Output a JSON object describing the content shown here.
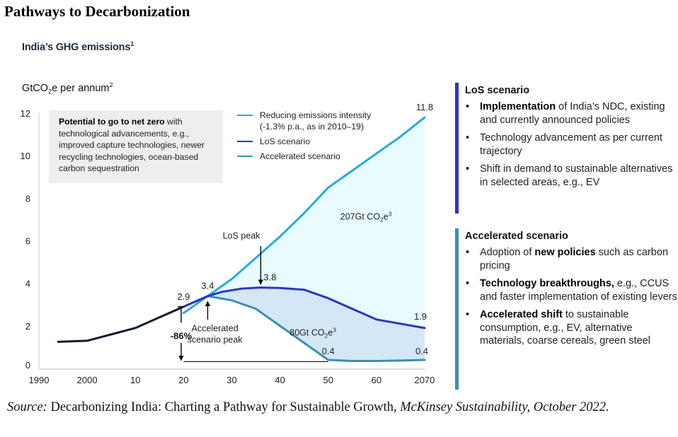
{
  "page_title": "Pathways to Decarbonization",
  "chart_title": "India’s GHG emissions",
  "chart_title_footnote": "1",
  "unit_label": {
    "pre": "GtCO",
    "sub": "2",
    "post": "e per annum",
    "sup": "2"
  },
  "callout": {
    "bold": "Potential to go to net zero",
    "rest": " with technological advancements, e.g., improved capture technologies, newer recycling technologies, ocean-based carbon sequestration"
  },
  "legend": [
    {
      "label": "Reducing emissions intensity",
      "label2": "(-1.3% p.a., as in 2010–19)",
      "color": "#29a9e0"
    },
    {
      "label": "LoS scenario",
      "color": "#2a35c9"
    },
    {
      "label": "Accelerated scenario",
      "color": "#3d8fa8"
    }
  ],
  "chart_data": {
    "type": "line",
    "title": "India’s GHG emissions",
    "ylabel": "GtCO2e per annum",
    "xlabel": "",
    "xlim": [
      1990,
      2070
    ],
    "ylim": [
      0,
      12
    ],
    "grid": false,
    "legend_position": "top-center",
    "x_ticks": [
      1990,
      2000,
      2010,
      2020,
      2030,
      2040,
      2050,
      2060,
      2070
    ],
    "x_tick_labels": [
      "1990",
      "2000",
      "10",
      "20",
      "30",
      "40",
      "50",
      "60",
      "2070"
    ],
    "y_ticks": [
      0,
      2,
      4,
      6,
      8,
      10,
      12
    ],
    "y_tick_labels": [
      "0",
      "2",
      "4",
      "6",
      "8",
      "10",
      "12"
    ],
    "series": [
      {
        "name": "Historical",
        "color": "#111a2e",
        "x": [
          1994,
          2000,
          2005,
          2010,
          2015,
          2020
        ],
        "y": [
          1.25,
          1.3,
          1.6,
          1.9,
          2.4,
          2.9
        ]
      },
      {
        "name": "Reducing emissions intensity (-1.3% p.a., as in 2010–19)",
        "color": "#29a9e0",
        "x": [
          2020,
          2025,
          2030,
          2035,
          2040,
          2045,
          2050,
          2055,
          2060,
          2065,
          2070
        ],
        "y": [
          2.6,
          3.4,
          4.2,
          5.2,
          6.2,
          7.3,
          8.5,
          9.3,
          10.1,
          10.9,
          11.8
        ]
      },
      {
        "name": "LoS scenario",
        "color": "#2a35c9",
        "x": [
          2020,
          2025,
          2028,
          2032,
          2036,
          2040,
          2045,
          2050,
          2055,
          2060,
          2065,
          2070
        ],
        "y": [
          2.9,
          3.4,
          3.6,
          3.75,
          3.8,
          3.78,
          3.7,
          3.3,
          2.8,
          2.3,
          2.1,
          1.9
        ]
      },
      {
        "name": "Accelerated scenario",
        "color": "#3d8fa8",
        "x": [
          2020,
          2025,
          2030,
          2035,
          2040,
          2045,
          2050,
          2055,
          2060,
          2065,
          2070
        ],
        "y": [
          2.9,
          3.4,
          3.2,
          2.8,
          2.0,
          1.2,
          0.4,
          0.35,
          0.35,
          0.37,
          0.4
        ]
      }
    ],
    "areas": [
      {
        "label": "207Gt CO2e",
        "between": [
          "Reducing emissions intensity (-1.3% p.a., as in 2010–19)",
          "LoS scenario"
        ],
        "color": "#e8fbff"
      },
      {
        "label": "80Gt CO2e",
        "between": [
          "LoS scenario",
          "Accelerated scenario"
        ],
        "color": "#d3e7f7"
      }
    ],
    "annotations": [
      {
        "text": "11.8",
        "x": 2070,
        "y": 11.8
      },
      {
        "text": "3.4",
        "x": 2025,
        "y": 3.4
      },
      {
        "text": "2.9",
        "x": 2020,
        "y": 2.9
      },
      {
        "text": "3.8",
        "x": 2036,
        "y": 3.8
      },
      {
        "text": "1.9",
        "x": 2070,
        "y": 1.9
      },
      {
        "text": "0.4",
        "x": 2050,
        "y": 0.4
      },
      {
        "text": "0.4",
        "x": 2070,
        "y": 0.4
      },
      {
        "text": "LoS peak"
      },
      {
        "text": "Accelerated scenario peak"
      },
      {
        "text": "-86%"
      },
      {
        "text": "207Gt CO2e³"
      },
      {
        "text": "80Gt CO2e³"
      }
    ]
  },
  "chart_text": {
    "los_peak": "LoS peak",
    "acc_peak_1": "Accelerated",
    "acc_peak_2": "scenario peak",
    "reduction": "-86%",
    "area1_pre": "207Gt CO",
    "area1_sub": "2",
    "area1_post": "e",
    "area1_sup": "3",
    "area2_pre": "80Gt CO",
    "area2_sub": "2",
    "area2_post": "e",
    "area2_sup": "3"
  },
  "panels": [
    {
      "title": "LoS scenario",
      "color": "#2a35c9",
      "bullets": [
        {
          "bold": "Implementation",
          "rest": " of India’s NDC, existing and currently announced policies"
        },
        {
          "bold": "",
          "rest": "Technology advancement as per current trajectory"
        },
        {
          "bold": "",
          "rest": "Shift in demand to sustainable alternatives in selected areas, e.g., EV"
        }
      ]
    },
    {
      "title": "Accelerated scenario",
      "color": "#3d8fa8",
      "bullets": [
        {
          "pre": "Adoption of ",
          "bold": "new policies",
          "rest": " such as carbon pricing"
        },
        {
          "bold": "Technology breakthroughs,",
          "rest": " e.g., CCUS and faster implementation of existing levers"
        },
        {
          "bold": "Accelerated shift",
          "rest": " to sustainable consumption, e.g., EV, alternative materials, coarse cereals, green steel"
        }
      ]
    }
  ],
  "source": {
    "label": "Source:",
    "text": " Decarbonizing India: Charting a Pathway for Sustainable Growth,",
    "italic": " McKinsey Sustainability, October 2022."
  }
}
